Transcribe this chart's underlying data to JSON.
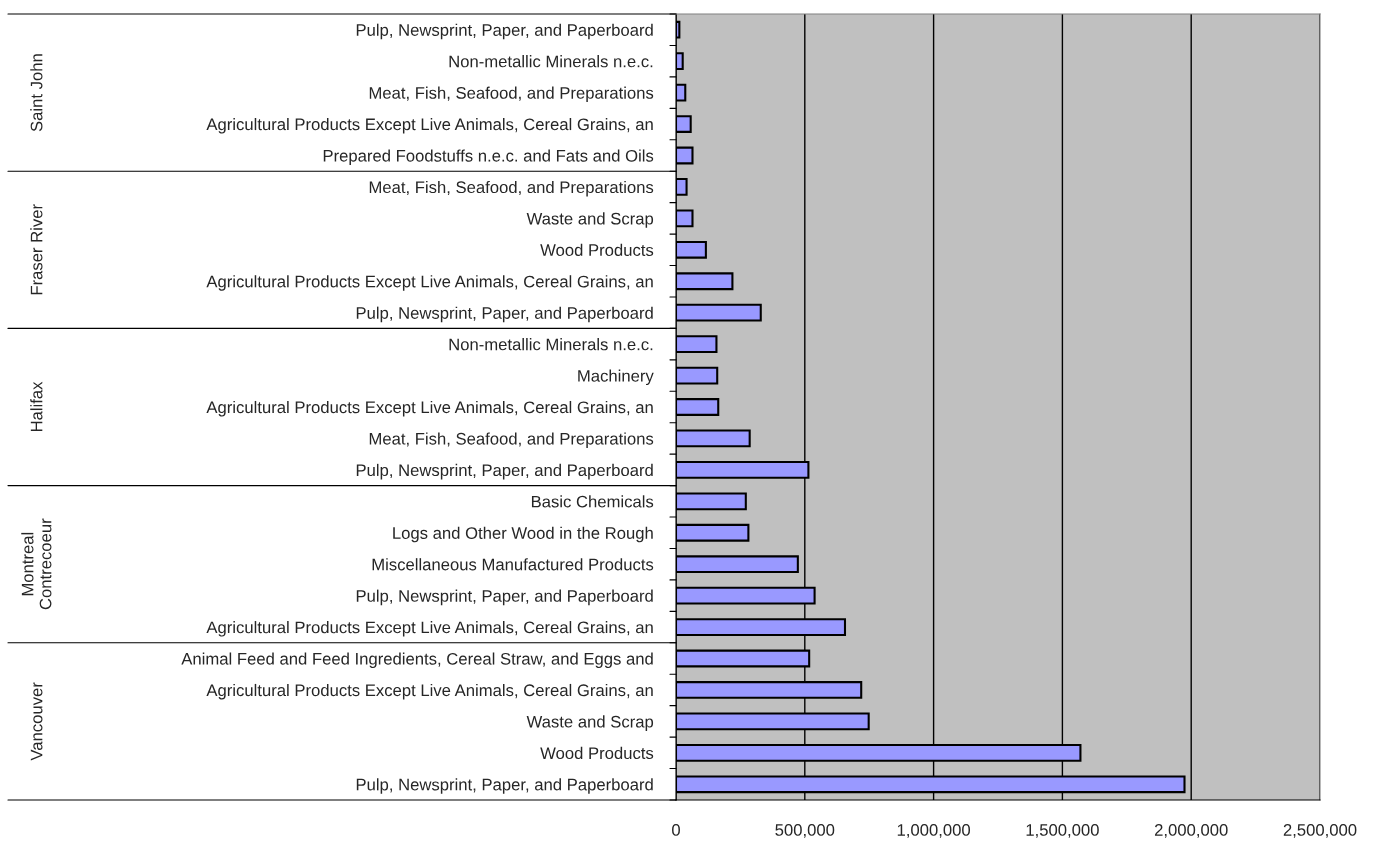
{
  "chart_data": {
    "type": "bar",
    "orientation": "horizontal",
    "categories": [
      "Pulp, Newsprint, Paper, and Paperboard",
      "Non-metallic Minerals n.e.c.",
      "Meat, Fish, Seafood, and Preparations",
      "Agricultural Products Except Live Animals, Cereal Grains, an",
      "Prepared Foodstuffs n.e.c. and Fats and Oils",
      "Meat, Fish, Seafood, and Preparations",
      "Waste and Scrap",
      "Wood Products",
      "Agricultural Products Except Live Animals, Cereal Grains, an",
      "Pulp, Newsprint, Paper, and Paperboard",
      "Non-metallic Minerals n.e.c.",
      "Machinery",
      "Agricultural Products Except Live Animals, Cereal Grains, an",
      "Meat, Fish, Seafood, and Preparations",
      "Pulp, Newsprint, Paper, and Paperboard",
      "Basic Chemicals",
      "Logs and Other Wood in the Rough",
      "Miscellaneous Manufactured Products",
      "Pulp, Newsprint, Paper, and Paperboard",
      "Agricultural Products Except Live Animals, Cereal Grains, an",
      "Animal Feed and Feed Ingredients, Cereal Straw, and Eggs and",
      "Agricultural Products Except Live Animals, Cereal Grains, an",
      "Waste and Scrap",
      "Wood Products",
      "Pulp, Newsprint, Paper, and Paperboard"
    ],
    "values": [
      13000,
      26000,
      36000,
      57000,
      64000,
      41000,
      64000,
      116000,
      219000,
      329000,
      157000,
      160000,
      164000,
      286000,
      514000,
      271000,
      281000,
      473000,
      538000,
      656000,
      517000,
      719000,
      748000,
      1570000,
      1974000
    ],
    "color": "#9999ff",
    "xlim": [
      0,
      2500000
    ],
    "xticks": [
      {
        "value": 0,
        "label": "0"
      },
      {
        "value": 500000,
        "label": "500,000"
      },
      {
        "value": 1000000,
        "label": "1,000,000"
      },
      {
        "value": 1500000,
        "label": "1,500,000"
      },
      {
        "value": 2000000,
        "label": "2,000,000"
      },
      {
        "value": 2500000,
        "label": "2,500,000"
      }
    ],
    "grid": "x",
    "legend": false,
    "annotations": [
      "Saint John",
      "Fraser River",
      "Halifax",
      "Montreal\nContrecoeur",
      "Vancouver"
    ]
  }
}
